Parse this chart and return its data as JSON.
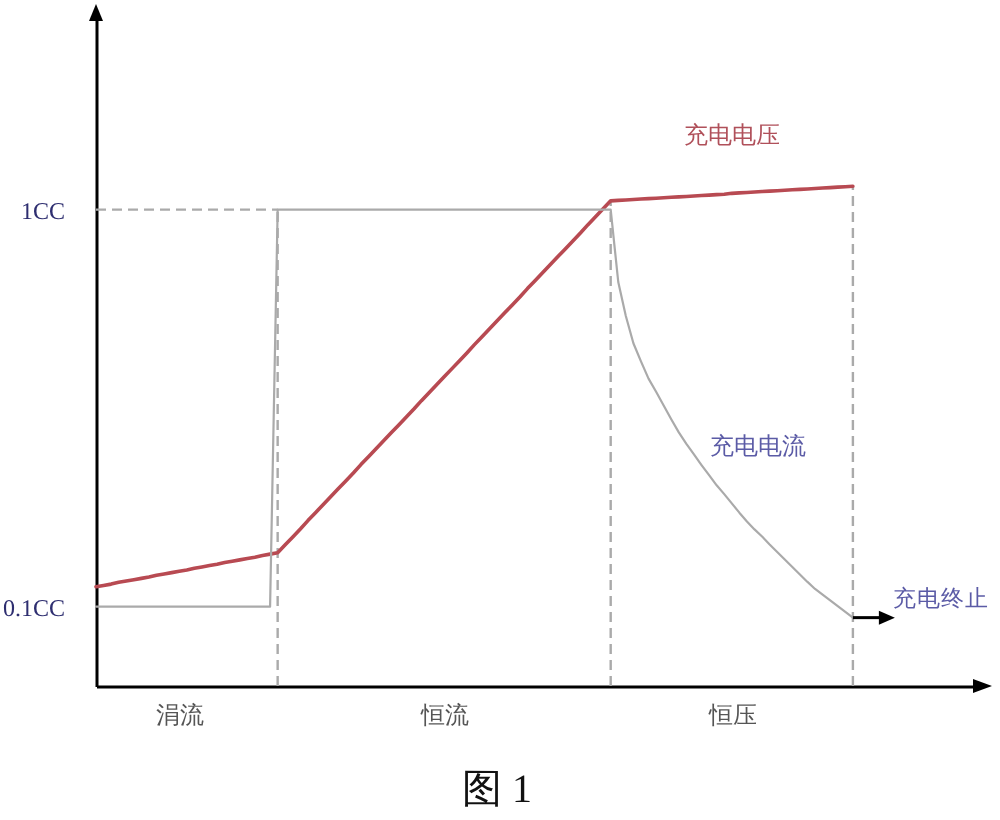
{
  "chart_data": {
    "type": "line",
    "title": "图 1",
    "categories": [
      null,
      null,
      null,
      null,
      null,
      null,
      null,
      null,
      null,
      null,
      null,
      "涓流",
      null,
      null,
      null,
      null,
      null,
      null,
      null,
      null,
      null,
      null,
      null,
      null,
      null,
      null,
      null,
      null,
      null,
      null,
      null,
      null,
      null,
      null,
      null,
      null,
      null,
      null,
      null,
      null,
      null,
      null,
      null,
      null,
      null,
      null,
      "恒流",
      null,
      null,
      null,
      null,
      null,
      null,
      null,
      null,
      null,
      null,
      null,
      null,
      null,
      null,
      null,
      null,
      null,
      null,
      null,
      null,
      null,
      null,
      null,
      null,
      null,
      null,
      null,
      null,
      null,
      null,
      null,
      null,
      null,
      null,
      null,
      null,
      null,
      "恒压",
      null,
      null,
      null,
      null,
      null,
      null,
      null,
      null,
      null,
      null,
      null,
      null,
      null,
      null,
      null,
      null,
      null,
      null,
      null,
      null,
      null,
      null,
      null,
      null,
      null,
      null,
      null,
      null,
      null,
      null,
      null,
      null
    ],
    "ylim": [
      -0.08,
      1.43
    ],
    "yticks": [
      {
        "value": 1,
        "label": "1CC"
      },
      {
        "value": 0.1,
        "label": "0.1CC"
      }
    ],
    "series": [
      {
        "name": "充电电压",
        "color": "#b84a52",
        "values": [
          0.145,
          0.148,
          0.151,
          0.155,
          0.158,
          0.161,
          0.164,
          0.167,
          0.171,
          0.174,
          0.177,
          0.18,
          0.183,
          0.187,
          0.19,
          0.193,
          0.196,
          0.2,
          0.203,
          0.206,
          0.209,
          0.212,
          0.216,
          0.219,
          0.222,
          0.24,
          0.258,
          0.276,
          0.295,
          0.313,
          0.331,
          0.349,
          0.367,
          0.385,
          0.403,
          0.422,
          0.44,
          0.458,
          0.476,
          0.494,
          0.512,
          0.53,
          0.548,
          0.567,
          0.585,
          0.603,
          0.621,
          0.639,
          0.657,
          0.675,
          0.694,
          0.712,
          0.73,
          0.748,
          0.766,
          0.784,
          0.802,
          0.821,
          0.839,
          0.857,
          0.875,
          0.893,
          0.911,
          0.929,
          0.947,
          0.966,
          0.984,
          1.002,
          1.02,
          1.021,
          1.022,
          1.023,
          1.024,
          1.025,
          1.026,
          1.027,
          1.028,
          1.029,
          1.03,
          1.031,
          1.032,
          1.033,
          1.034,
          1.035,
          1.037,
          1.038,
          1.039,
          1.04,
          1.041,
          1.042,
          1.043,
          1.044,
          1.045,
          1.046,
          1.047,
          1.048,
          1.049,
          1.05,
          1.051,
          1.052,
          1.053,
          null,
          null,
          null,
          null,
          null,
          null,
          null,
          null,
          null,
          null,
          null,
          null,
          null,
          null,
          null,
          null
        ]
      },
      {
        "name": "充电电流",
        "color": "#aaaaaa",
        "values": [
          0.1,
          0.1,
          0.1,
          0.1,
          0.1,
          0.1,
          0.1,
          0.1,
          0.1,
          0.1,
          0.1,
          0.1,
          0.1,
          0.1,
          0.1,
          0.1,
          0.1,
          0.1,
          0.1,
          0.1,
          0.1,
          0.1,
          0.1,
          0.1,
          1,
          1,
          1,
          1,
          1,
          1,
          1,
          1,
          1,
          1,
          1,
          1,
          1,
          1,
          1,
          1,
          1,
          1,
          1,
          1,
          1,
          1,
          1,
          1,
          1,
          1,
          1,
          1,
          1,
          1,
          1,
          1,
          1,
          1,
          1,
          1,
          1,
          1,
          1,
          1,
          1,
          1,
          1,
          1,
          1,
          0.836,
          0.759,
          0.697,
          0.656,
          0.617,
          0.587,
          0.556,
          0.525,
          0.495,
          0.469,
          0.445,
          0.421,
          0.398,
          0.375,
          0.355,
          0.334,
          0.313,
          0.293,
          0.275,
          0.259,
          0.241,
          0.224,
          0.207,
          0.19,
          0.173,
          0.156,
          0.14,
          0.127,
          0.114,
          0.101,
          0.088,
          0.075,
          null,
          null,
          null,
          null,
          null,
          null,
          null,
          null,
          null,
          null,
          null,
          null,
          null,
          null,
          null,
          null
        ]
      }
    ],
    "ref_lines": [
      {
        "axis": "y",
        "value": 1,
        "color": "#aaaaaa",
        "line_style": "dashed"
      }
    ],
    "annotations": [
      "充电终止"
    ]
  }
}
